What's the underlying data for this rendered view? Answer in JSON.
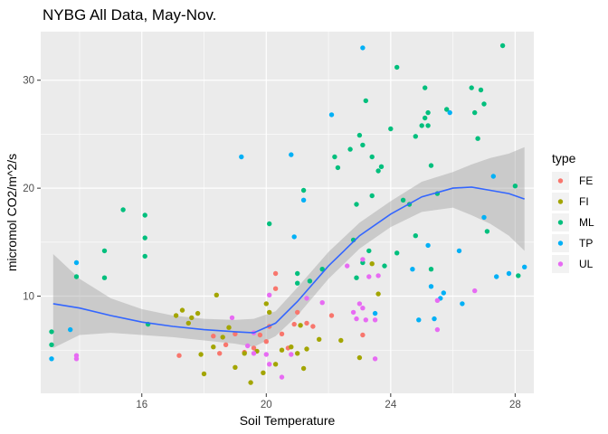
{
  "chart_data": {
    "type": "scatter",
    "title": "NYBG All Data, May-Nov.",
    "xlabel": "Soil Temperature",
    "ylabel": "micromol CO2/m^2/s",
    "xlim": [
      12.75,
      28.6
    ],
    "ylim": [
      1.0,
      34.5
    ],
    "x_ticks": [
      16,
      20,
      24,
      28
    ],
    "y_ticks": [
      10,
      20,
      30
    ],
    "grid": true,
    "panel_background": "#ebebeb",
    "legend": {
      "title": "type",
      "position": "right"
    },
    "series": [
      {
        "name": "FE",
        "color": "#F8766D",
        "points": [
          [
            17.2,
            4.5
          ],
          [
            18.3,
            6.3
          ],
          [
            18.5,
            4.7
          ],
          [
            18.7,
            5.5
          ],
          [
            19.0,
            6.5
          ],
          [
            19.3,
            4.8
          ],
          [
            19.6,
            5.2
          ],
          [
            19.8,
            6.4
          ],
          [
            20.0,
            5.8
          ],
          [
            20.1,
            7.2
          ],
          [
            20.3,
            12.1
          ],
          [
            20.3,
            10.7
          ],
          [
            20.5,
            6.5
          ],
          [
            20.7,
            5.2
          ],
          [
            20.9,
            7.4
          ],
          [
            21.0,
            8.5
          ],
          [
            21.3,
            7.5
          ],
          [
            21.5,
            7.2
          ],
          [
            22.1,
            8.2
          ],
          [
            23.1,
            6.4
          ]
        ]
      },
      {
        "name": "FI",
        "color": "#A3A500",
        "points": [
          [
            17.1,
            8.2
          ],
          [
            17.3,
            8.7
          ],
          [
            17.5,
            7.5
          ],
          [
            17.6,
            8.0
          ],
          [
            17.8,
            8.4
          ],
          [
            17.9,
            4.6
          ],
          [
            18.0,
            2.8
          ],
          [
            18.3,
            5.3
          ],
          [
            18.4,
            10.1
          ],
          [
            18.6,
            6.2
          ],
          [
            18.8,
            7.1
          ],
          [
            19.0,
            3.4
          ],
          [
            19.3,
            4.7
          ],
          [
            19.5,
            2.0
          ],
          [
            19.7,
            4.9
          ],
          [
            19.9,
            2.9
          ],
          [
            20.0,
            9.3
          ],
          [
            20.1,
            8.5
          ],
          [
            20.3,
            3.7
          ],
          [
            20.5,
            5.0
          ],
          [
            20.8,
            5.3
          ],
          [
            21.0,
            4.7
          ],
          [
            21.1,
            7.3
          ],
          [
            21.2,
            3.3
          ],
          [
            21.3,
            5.1
          ],
          [
            21.7,
            6.0
          ],
          [
            22.4,
            5.9
          ],
          [
            23.0,
            4.3
          ],
          [
            23.4,
            13.0
          ],
          [
            23.6,
            10.2
          ]
        ]
      },
      {
        "name": "ML",
        "color": "#00BF7D",
        "points": [
          [
            13.1,
            6.7
          ],
          [
            13.1,
            5.5
          ],
          [
            13.9,
            11.8
          ],
          [
            14.8,
            14.2
          ],
          [
            14.8,
            11.7
          ],
          [
            15.4,
            18.0
          ],
          [
            16.1,
            17.5
          ],
          [
            16.1,
            15.4
          ],
          [
            16.1,
            13.7
          ],
          [
            16.2,
            7.4
          ],
          [
            20.1,
            16.7
          ],
          [
            21.0,
            12.1
          ],
          [
            21.0,
            11.2
          ],
          [
            21.2,
            19.8
          ],
          [
            21.4,
            11.4
          ],
          [
            21.8,
            12.5
          ],
          [
            22.2,
            22.9
          ],
          [
            22.3,
            21.9
          ],
          [
            22.7,
            23.6
          ],
          [
            22.8,
            15.2
          ],
          [
            22.9,
            18.5
          ],
          [
            22.9,
            11.7
          ],
          [
            23.0,
            24.9
          ],
          [
            23.1,
            24.0
          ],
          [
            23.1,
            13.1
          ],
          [
            23.2,
            28.1
          ],
          [
            23.3,
            14.2
          ],
          [
            23.4,
            19.3
          ],
          [
            23.4,
            22.9
          ],
          [
            23.6,
            21.6
          ],
          [
            23.7,
            22.0
          ],
          [
            23.8,
            12.8
          ],
          [
            24.0,
            25.5
          ],
          [
            24.2,
            31.2
          ],
          [
            24.2,
            14.0
          ],
          [
            24.4,
            18.9
          ],
          [
            24.6,
            18.5
          ],
          [
            24.8,
            15.6
          ],
          [
            24.8,
            24.8
          ],
          [
            25.0,
            25.8
          ],
          [
            25.1,
            26.5
          ],
          [
            25.1,
            29.3
          ],
          [
            25.2,
            25.8
          ],
          [
            25.2,
            27.0
          ],
          [
            25.3,
            22.1
          ],
          [
            25.3,
            12.5
          ],
          [
            25.5,
            19.5
          ],
          [
            25.8,
            27.3
          ],
          [
            26.6,
            29.3
          ],
          [
            26.7,
            27.0
          ],
          [
            26.8,
            24.6
          ],
          [
            26.9,
            29.1
          ],
          [
            27.0,
            27.8
          ],
          [
            27.1,
            16.0
          ],
          [
            27.6,
            33.2
          ],
          [
            28.0,
            20.2
          ],
          [
            28.1,
            11.9
          ]
        ]
      },
      {
        "name": "TP",
        "color": "#00B0F6",
        "points": [
          [
            13.1,
            4.2
          ],
          [
            13.7,
            6.9
          ],
          [
            13.9,
            13.1
          ],
          [
            19.2,
            22.9
          ],
          [
            20.8,
            23.1
          ],
          [
            20.9,
            15.5
          ],
          [
            21.2,
            18.9
          ],
          [
            22.1,
            26.8
          ],
          [
            23.1,
            33.0
          ],
          [
            23.5,
            8.4
          ],
          [
            24.7,
            12.5
          ],
          [
            24.9,
            7.8
          ],
          [
            25.2,
            14.7
          ],
          [
            25.3,
            10.9
          ],
          [
            25.4,
            7.9
          ],
          [
            25.6,
            9.8
          ],
          [
            25.7,
            10.3
          ],
          [
            25.9,
            27.0
          ],
          [
            26.2,
            14.2
          ],
          [
            26.3,
            9.3
          ],
          [
            27.0,
            17.3
          ],
          [
            27.3,
            21.1
          ],
          [
            27.4,
            11.8
          ],
          [
            27.8,
            12.1
          ],
          [
            28.3,
            12.7
          ]
        ]
      },
      {
        "name": "UL",
        "color": "#E76BF3",
        "points": [
          [
            13.9,
            4.2
          ],
          [
            13.9,
            4.5
          ],
          [
            18.9,
            8.0
          ],
          [
            19.4,
            5.4
          ],
          [
            19.6,
            4.7
          ],
          [
            19.6,
            6.6
          ],
          [
            20.0,
            4.6
          ],
          [
            20.1,
            10.1
          ],
          [
            20.1,
            3.7
          ],
          [
            20.5,
            2.5
          ],
          [
            20.8,
            4.6
          ],
          [
            21.3,
            9.8
          ],
          [
            21.8,
            9.4
          ],
          [
            22.6,
            12.8
          ],
          [
            22.8,
            8.5
          ],
          [
            22.9,
            7.9
          ],
          [
            23.0,
            9.3
          ],
          [
            23.1,
            13.4
          ],
          [
            23.1,
            8.9
          ],
          [
            23.2,
            7.8
          ],
          [
            23.3,
            11.8
          ],
          [
            23.5,
            4.2
          ],
          [
            23.5,
            7.8
          ],
          [
            23.6,
            11.9
          ],
          [
            25.5,
            6.9
          ],
          [
            25.5,
            9.6
          ],
          [
            26.7,
            10.5
          ]
        ]
      }
    ],
    "smooth": {
      "color": "#3366FF",
      "band_color": "#999999",
      "x": [
        13.15,
        14.0,
        15.0,
        16.0,
        17.0,
        18.0,
        19.0,
        19.6,
        20.3,
        21.0,
        22.0,
        23.0,
        24.0,
        25.0,
        26.0,
        26.6,
        27.2,
        27.8,
        28.3
      ],
      "y": [
        9.3,
        8.9,
        8.2,
        7.6,
        7.2,
        6.9,
        6.7,
        6.6,
        7.5,
        9.5,
        12.8,
        15.6,
        17.6,
        19.2,
        20.0,
        20.1,
        19.8,
        19.5,
        19.0
      ],
      "lower": [
        5.2,
        6.4,
        6.6,
        6.4,
        6.2,
        5.9,
        5.6,
        5.3,
        6.3,
        8.2,
        11.6,
        14.4,
        16.4,
        17.8,
        18.2,
        17.5,
        16.7,
        15.6,
        14.2
      ],
      "upper": [
        13.9,
        11.6,
        9.8,
        8.8,
        8.2,
        7.9,
        7.8,
        7.9,
        8.6,
        10.8,
        14.1,
        16.8,
        18.8,
        20.6,
        21.5,
        22.2,
        22.8,
        23.2,
        23.8
      ]
    }
  }
}
